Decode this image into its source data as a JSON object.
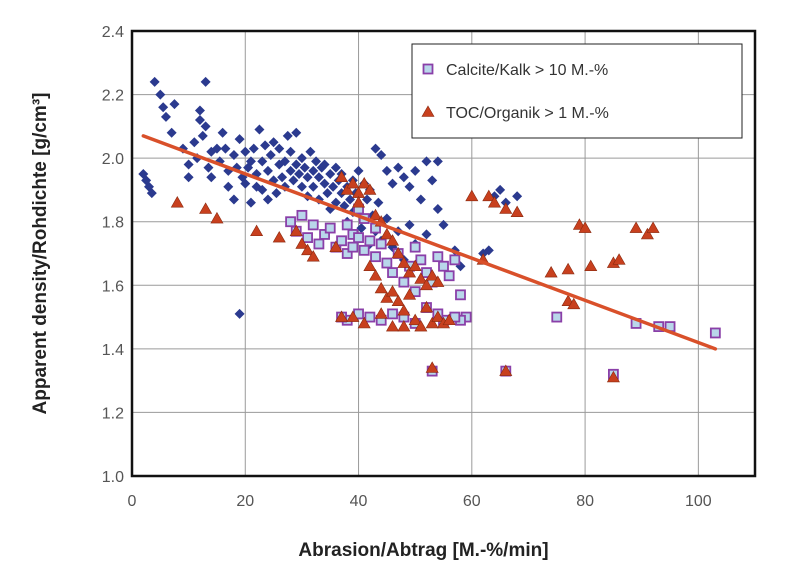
{
  "chart_data": {
    "type": "scatter",
    "xlabel": "Abrasion/Abtrag [M.-%/min]",
    "ylabel": "Apparent density/Rohdichte [g/cm³]",
    "xlim": [
      0,
      110
    ],
    "ylim": [
      1.0,
      2.4
    ],
    "x_ticks": [
      "0",
      "20",
      "40",
      "60",
      "80",
      "100"
    ],
    "y_ticks": [
      "1.0",
      "1.2",
      "1.4",
      "1.6",
      "1.8",
      "2.0",
      "2.2",
      "2.4"
    ],
    "grid": true,
    "legend_position": "top-right",
    "colors": {
      "general": "#2b3a8f",
      "calcite_fill": "#b9d7ea",
      "calcite_edge": "#8a3fa8",
      "toc": "#c8401e",
      "trend": "#d9502a"
    },
    "series": [
      {
        "marker": "diamond",
        "points": [
          [
            2,
            1.95
          ],
          [
            2.5,
            1.93
          ],
          [
            3,
            1.91
          ],
          [
            3.5,
            1.89
          ],
          [
            4,
            2.24
          ],
          [
            5,
            2.2
          ],
          [
            5.5,
            2.16
          ],
          [
            6,
            2.13
          ],
          [
            7,
            2.08
          ],
          [
            7.5,
            2.17
          ],
          [
            9,
            2.03
          ],
          [
            10,
            1.98
          ],
          [
            10,
            1.94
          ],
          [
            11,
            2.05
          ],
          [
            11.5,
            2.0
          ],
          [
            12,
            2.12
          ],
          [
            12,
            2.15
          ],
          [
            12.5,
            2.07
          ],
          [
            13,
            2.24
          ],
          [
            13,
            2.1
          ],
          [
            13.5,
            1.97
          ],
          [
            14,
            2.02
          ],
          [
            14,
            1.94
          ],
          [
            15,
            2.03
          ],
          [
            15.5,
            1.99
          ],
          [
            16,
            2.08
          ],
          [
            16.5,
            2.03
          ],
          [
            17,
            1.96
          ],
          [
            17,
            1.91
          ],
          [
            18,
            2.01
          ],
          [
            18,
            1.87
          ],
          [
            18.5,
            1.97
          ],
          [
            19,
            2.06
          ],
          [
            19,
            1.51
          ],
          [
            19.5,
            1.94
          ],
          [
            20,
            2.02
          ],
          [
            20,
            1.92
          ],
          [
            20.5,
            1.97
          ],
          [
            21,
            1.99
          ],
          [
            21,
            1.86
          ],
          [
            21.5,
            2.03
          ],
          [
            22,
            1.95
          ],
          [
            22,
            1.91
          ],
          [
            22.5,
            2.09
          ],
          [
            23,
            1.99
          ],
          [
            23,
            1.9
          ],
          [
            23.5,
            2.04
          ],
          [
            24,
            1.96
          ],
          [
            24,
            1.87
          ],
          [
            24.5,
            2.01
          ],
          [
            25,
            2.05
          ],
          [
            25,
            1.93
          ],
          [
            25.5,
            1.89
          ],
          [
            26,
            2.03
          ],
          [
            26,
            1.98
          ],
          [
            26.5,
            1.94
          ],
          [
            27,
            1.99
          ],
          [
            27,
            1.91
          ],
          [
            27.5,
            2.07
          ],
          [
            28,
            1.96
          ],
          [
            28,
            2.02
          ],
          [
            28.5,
            1.93
          ],
          [
            29,
            1.98
          ],
          [
            29,
            2.08
          ],
          [
            29.5,
            1.95
          ],
          [
            30,
            1.91
          ],
          [
            30,
            2.0
          ],
          [
            30.5,
            1.97
          ],
          [
            31,
            1.94
          ],
          [
            31,
            1.88
          ],
          [
            31.5,
            2.02
          ],
          [
            32,
            1.96
          ],
          [
            32,
            1.91
          ],
          [
            32.5,
            1.99
          ],
          [
            33,
            1.94
          ],
          [
            33,
            1.87
          ],
          [
            33.5,
            1.97
          ],
          [
            34,
            1.92
          ],
          [
            34,
            1.98
          ],
          [
            34.5,
            1.89
          ],
          [
            35,
            1.95
          ],
          [
            35,
            1.84
          ],
          [
            35.5,
            1.91
          ],
          [
            36,
            1.97
          ],
          [
            36,
            1.86
          ],
          [
            36.5,
            1.93
          ],
          [
            37,
            1.89
          ],
          [
            37,
            1.95
          ],
          [
            37.5,
            1.85
          ],
          [
            38,
            1.91
          ],
          [
            38,
            1.8
          ],
          [
            38.5,
            1.87
          ],
          [
            39,
            1.93
          ],
          [
            39,
            1.83
          ],
          [
            39.5,
            1.89
          ],
          [
            40,
            1.96
          ],
          [
            40,
            1.84
          ],
          [
            40.5,
            1.78
          ],
          [
            41,
            1.92
          ],
          [
            41,
            1.81
          ],
          [
            41.5,
            1.87
          ],
          [
            42,
            1.73
          ],
          [
            42,
            1.9
          ],
          [
            42.5,
            1.82
          ],
          [
            43,
            2.03
          ],
          [
            43,
            1.77
          ],
          [
            43.5,
            1.86
          ],
          [
            44,
            2.01
          ],
          [
            44,
            1.74
          ],
          [
            45,
            1.96
          ],
          [
            45,
            1.81
          ],
          [
            46,
            1.92
          ],
          [
            46,
            1.72
          ],
          [
            47,
            1.97
          ],
          [
            47,
            1.77
          ],
          [
            48,
            1.94
          ],
          [
            48,
            1.68
          ],
          [
            49,
            1.91
          ],
          [
            49,
            1.79
          ],
          [
            50,
            1.96
          ],
          [
            50,
            1.73
          ],
          [
            51,
            1.87
          ],
          [
            52,
            1.99
          ],
          [
            52,
            1.76
          ],
          [
            53,
            1.93
          ],
          [
            54,
            1.99
          ],
          [
            54,
            1.84
          ],
          [
            55,
            1.79
          ],
          [
            57,
            1.71
          ],
          [
            58,
            1.66
          ],
          [
            62,
            1.7
          ],
          [
            63,
            1.71
          ],
          [
            64,
            1.88
          ],
          [
            65,
            1.9
          ],
          [
            66,
            1.86
          ],
          [
            68,
            1.88
          ]
        ]
      },
      {
        "name": "Calcite/Kalk > 10 M.-%",
        "marker": "square",
        "points": [
          [
            28,
            1.8
          ],
          [
            29,
            1.77
          ],
          [
            30,
            1.82
          ],
          [
            31,
            1.75
          ],
          [
            32,
            1.79
          ],
          [
            33,
            1.73
          ],
          [
            34,
            1.76
          ],
          [
            35,
            1.78
          ],
          [
            36,
            1.72
          ],
          [
            37,
            1.74
          ],
          [
            38,
            1.79
          ],
          [
            38,
            1.7
          ],
          [
            39,
            1.76
          ],
          [
            39,
            1.72
          ],
          [
            40,
            1.84
          ],
          [
            40,
            1.75
          ],
          [
            41,
            1.81
          ],
          [
            41,
            1.71
          ],
          [
            42,
            1.74
          ],
          [
            43,
            1.78
          ],
          [
            43,
            1.69
          ],
          [
            44,
            1.73
          ],
          [
            45,
            1.67
          ],
          [
            46,
            1.64
          ],
          [
            47,
            1.7
          ],
          [
            48,
            1.61
          ],
          [
            49,
            1.66
          ],
          [
            50,
            1.72
          ],
          [
            50,
            1.58
          ],
          [
            51,
            1.68
          ],
          [
            52,
            1.64
          ],
          [
            53,
            1.61
          ],
          [
            54,
            1.69
          ],
          [
            55,
            1.66
          ],
          [
            56,
            1.63
          ],
          [
            57,
            1.68
          ],
          [
            58,
            1.57
          ],
          [
            59,
            1.5
          ],
          [
            58,
            1.49
          ],
          [
            57,
            1.5
          ],
          [
            55,
            1.49
          ],
          [
            54,
            1.51
          ],
          [
            52,
            1.53
          ],
          [
            50,
            1.48
          ],
          [
            48,
            1.5
          ],
          [
            46,
            1.51
          ],
          [
            44,
            1.49
          ],
          [
            42,
            1.5
          ],
          [
            40,
            1.51
          ],
          [
            38,
            1.49
          ],
          [
            37,
            1.5
          ],
          [
            53,
            1.33
          ],
          [
            66,
            1.33
          ],
          [
            75,
            1.5
          ],
          [
            85,
            1.32
          ],
          [
            89,
            1.48
          ],
          [
            93,
            1.47
          ],
          [
            95,
            1.47
          ],
          [
            103,
            1.45
          ]
        ]
      },
      {
        "name": "TOC/Organik > 1 M.-%",
        "marker": "triangle",
        "points": [
          [
            8,
            1.86
          ],
          [
            13,
            1.84
          ],
          [
            15,
            1.81
          ],
          [
            22,
            1.77
          ],
          [
            26,
            1.75
          ],
          [
            29,
            1.77
          ],
          [
            30,
            1.73
          ],
          [
            31,
            1.71
          ],
          [
            32,
            1.69
          ],
          [
            36,
            1.72
          ],
          [
            37,
            1.94
          ],
          [
            38,
            1.9
          ],
          [
            39,
            1.92
          ],
          [
            40,
            1.89
          ],
          [
            40,
            1.86
          ],
          [
            41,
            1.92
          ],
          [
            42,
            1.9
          ],
          [
            43,
            1.82
          ],
          [
            44,
            1.8
          ],
          [
            45,
            1.76
          ],
          [
            46,
            1.74
          ],
          [
            47,
            1.7
          ],
          [
            48,
            1.67
          ],
          [
            49,
            1.64
          ],
          [
            50,
            1.66
          ],
          [
            51,
            1.62
          ],
          [
            52,
            1.6
          ],
          [
            53,
            1.63
          ],
          [
            54,
            1.61
          ],
          [
            42,
            1.66
          ],
          [
            43,
            1.63
          ],
          [
            44,
            1.59
          ],
          [
            45,
            1.56
          ],
          [
            46,
            1.58
          ],
          [
            47,
            1.55
          ],
          [
            48,
            1.52
          ],
          [
            49,
            1.57
          ],
          [
            50,
            1.49
          ],
          [
            51,
            1.47
          ],
          [
            52,
            1.53
          ],
          [
            53,
            1.48
          ],
          [
            54,
            1.5
          ],
          [
            55,
            1.48
          ],
          [
            56,
            1.49
          ],
          [
            37,
            1.5
          ],
          [
            39,
            1.5
          ],
          [
            41,
            1.48
          ],
          [
            44,
            1.51
          ],
          [
            46,
            1.47
          ],
          [
            48,
            1.47
          ],
          [
            53,
            1.34
          ],
          [
            60,
            1.88
          ],
          [
            62,
            1.68
          ],
          [
            63,
            1.88
          ],
          [
            64,
            1.86
          ],
          [
            66,
            1.84
          ],
          [
            68,
            1.83
          ],
          [
            66,
            1.33
          ],
          [
            74,
            1.64
          ],
          [
            77,
            1.65
          ],
          [
            77,
            1.55
          ],
          [
            78,
            1.54
          ],
          [
            79,
            1.79
          ],
          [
            80,
            1.78
          ],
          [
            81,
            1.66
          ],
          [
            85,
            1.67
          ],
          [
            86,
            1.68
          ],
          [
            85,
            1.31
          ],
          [
            89,
            1.78
          ],
          [
            91,
            1.76
          ],
          [
            92,
            1.78
          ]
        ]
      }
    ],
    "trendline": {
      "x": [
        2,
        103
      ],
      "y": [
        2.07,
        1.4
      ]
    },
    "legend": [
      {
        "label": "Calcite/Kalk > 10 M.-%",
        "marker": "square"
      },
      {
        "label": "TOC/Organik > 1 M.-%",
        "marker": "triangle"
      }
    ]
  }
}
